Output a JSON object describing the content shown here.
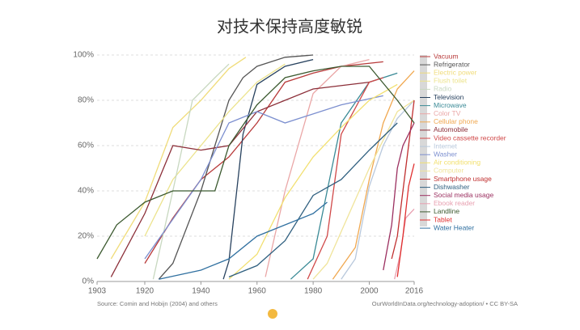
{
  "chart_data": {
    "type": "line",
    "title": "对技术保持高度敏锐",
    "source": "Source: Comin and Hobijn (2004) and others",
    "credit": "OurWorldInData.org/technology-adoption/ • CC BY-SA",
    "xlim": [
      1903,
      2016
    ],
    "xticks": [
      1903,
      1920,
      1940,
      1960,
      1980,
      2000,
      2016
    ],
    "ylim": [
      0,
      100
    ],
    "yticks": [
      {
        "value": 0,
        "label": "0%"
      },
      {
        "value": 20,
        "label": "20%"
      },
      {
        "value": 40,
        "label": "40%"
      },
      {
        "value": 60,
        "label": "60%"
      },
      {
        "value": 80,
        "label": "80%"
      },
      {
        "value": 100,
        "label": "100%"
      }
    ],
    "series": [
      {
        "name": "Vacuum",
        "color": "#b83a3a",
        "x": [
          1920,
          1930,
          1940,
          1950,
          1960,
          1970,
          1980,
          1990,
          2005
        ],
        "values": [
          8,
          28,
          45,
          55,
          70,
          88,
          92,
          95,
          97
        ]
      },
      {
        "name": "Refrigerator",
        "color": "#555555",
        "x": [
          1925,
          1930,
          1940,
          1950,
          1955,
          1960,
          1970,
          1980
        ],
        "values": [
          1,
          8,
          40,
          80,
          90,
          95,
          99,
          100
        ]
      },
      {
        "name": "Electric power",
        "color": "#f0dc7a",
        "x": [
          1908,
          1920,
          1930,
          1940,
          1950,
          1956
        ],
        "values": [
          10,
          35,
          68,
          80,
          94,
          99
        ]
      },
      {
        "name": "Flush toilet",
        "color": "#ece38c",
        "x": [
          1920,
          1930,
          1940,
          1950,
          1960,
          1970
        ],
        "values": [
          20,
          45,
          60,
          75,
          88,
          96
        ]
      },
      {
        "name": "Radio",
        "color": "#c8d8c0",
        "x": [
          1923,
          1930,
          1937,
          1945,
          1950
        ],
        "values": [
          1,
          40,
          80,
          90,
          96
        ]
      },
      {
        "name": "Television",
        "color": "#27415e",
        "x": [
          1948,
          1950,
          1955,
          1960,
          1970,
          1980
        ],
        "values": [
          1,
          9,
          65,
          87,
          95,
          98
        ]
      },
      {
        "name": "Microwave",
        "color": "#3a8a96",
        "x": [
          1972,
          1980,
          1990,
          2000,
          2010
        ],
        "values": [
          1,
          10,
          70,
          88,
          92
        ]
      },
      {
        "name": "Color TV",
        "color": "#eaa6a6",
        "x": [
          1963,
          1970,
          1980,
          1990,
          2000
        ],
        "values": [
          2,
          40,
          83,
          95,
          98
        ]
      },
      {
        "name": "Cellular phone",
        "color": "#f0a850",
        "x": [
          1987,
          1995,
          2000,
          2005,
          2010,
          2016
        ],
        "values": [
          1,
          15,
          45,
          70,
          85,
          93
        ]
      },
      {
        "name": "Automobile",
        "color": "#8c2f39",
        "x": [
          1908,
          1920,
          1930,
          1940,
          1950,
          1960,
          1970,
          1980,
          2000
        ],
        "values": [
          2,
          30,
          60,
          58,
          60,
          75,
          80,
          85,
          88
        ]
      },
      {
        "name": "Video cassette recorder",
        "color": "#d04848",
        "x": [
          1978,
          1985,
          1990,
          2000,
          2005
        ],
        "values": [
          1,
          20,
          65,
          88,
          90
        ]
      },
      {
        "name": "Internet",
        "color": "#b8c8dc",
        "x": [
          1990,
          1995,
          2000,
          2005,
          2010,
          2016
        ],
        "values": [
          1,
          10,
          42,
          60,
          72,
          80
        ]
      },
      {
        "name": "Washer",
        "color": "#7c8fcf",
        "x": [
          1920,
          1940,
          1950,
          1960,
          1970,
          1990,
          2005
        ],
        "values": [
          10,
          45,
          70,
          75,
          70,
          78,
          82
        ]
      },
      {
        "name": "Air conditioning",
        "color": "#f2e070",
        "x": [
          1950,
          1960,
          1970,
          1980,
          1990,
          2000,
          2010
        ],
        "values": [
          1,
          12,
          37,
          55,
          68,
          80,
          87
        ]
      },
      {
        "name": "Computer",
        "color": "#f0e49a",
        "x": [
          1980,
          1985,
          1990,
          2000,
          2010,
          2016
        ],
        "values": [
          1,
          8,
          22,
          50,
          75,
          80
        ]
      },
      {
        "name": "Smartphone usage",
        "color": "#c03030",
        "x": [
          2008,
          2010,
          2012,
          2014,
          2016
        ],
        "values": [
          10,
          20,
          40,
          60,
          80
        ]
      },
      {
        "name": "Dishwasher",
        "color": "#306080",
        "x": [
          1950,
          1960,
          1970,
          1980,
          1990,
          2000,
          2010
        ],
        "values": [
          2,
          7,
          18,
          38,
          45,
          58,
          70
        ]
      },
      {
        "name": "Social media usage",
        "color": "#9c3060",
        "x": [
          2005,
          2008,
          2010,
          2012,
          2016
        ],
        "values": [
          5,
          25,
          50,
          60,
          70
        ]
      },
      {
        "name": "Ebook reader",
        "color": "#e8a0b0",
        "x": [
          2009,
          2011,
          2013,
          2016
        ],
        "values": [
          1,
          12,
          28,
          32
        ]
      },
      {
        "name": "Landline",
        "color": "#3c5a30",
        "x": [
          1903,
          1910,
          1920,
          1930,
          1945,
          1950,
          1960,
          1970,
          1980,
          1990,
          2000,
          2010,
          2016
        ],
        "values": [
          10,
          25,
          35,
          40,
          40,
          60,
          78,
          90,
          93,
          95,
          95,
          80,
          70
        ]
      },
      {
        "name": "Tablet",
        "color": "#e03030",
        "x": [
          2010,
          2012,
          2014,
          2016
        ],
        "values": [
          2,
          20,
          42,
          52
        ]
      },
      {
        "name": "Water Heater",
        "color": "#3070a0",
        "x": [
          1925,
          1940,
          1950,
          1960,
          1970,
          1980,
          1985
        ],
        "values": [
          1,
          5,
          10,
          20,
          25,
          30,
          35
        ]
      }
    ]
  }
}
